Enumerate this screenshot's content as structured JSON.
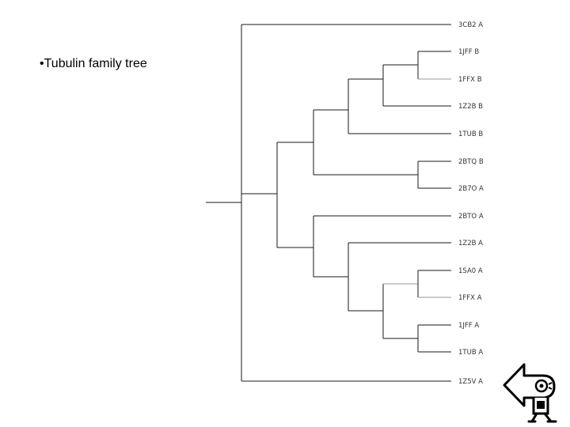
{
  "slide": {
    "bullet_marker": "•",
    "bullet_text": "Tubulin family tree"
  },
  "tree": {
    "leaves": [
      "3CB2 A",
      "1JFF B",
      "1FFX B",
      "1Z2B B",
      "1TUB B",
      "2BTQ B",
      "2B7O A",
      "2BTO A",
      "1Z2B A",
      "1SA0 A",
      "1FFX A",
      "1JFF A",
      "1TUB A",
      "1Z5V A"
    ],
    "topology": "(3CB2 A,((((((1JFF B,1FFX B),1Z2B B),1TUB B),(2BTQ B,2B7O A)),(2BTO A,(1Z2B A,((1SA0 A,1FFX A),(1JFF A,1TUB A)))))),1Z5V A)"
  },
  "nav": {
    "back_icon": "back-arrow-icon"
  }
}
